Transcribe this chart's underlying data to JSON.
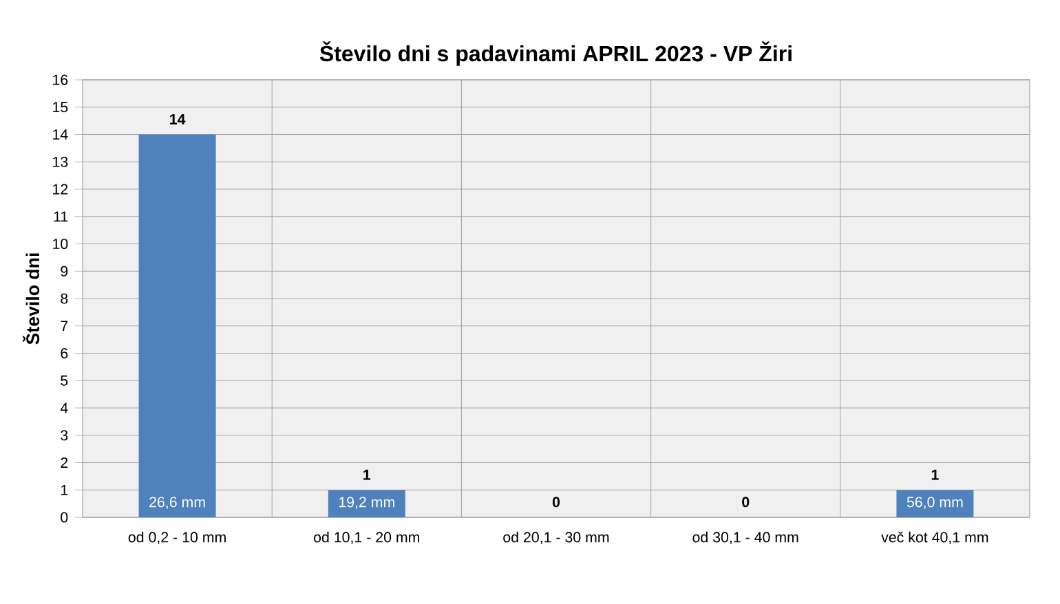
{
  "chart_data": {
    "type": "bar",
    "title": "Število dni s padavinami  APRIL 2023 - VP Žiri",
    "ylabel": "Število dni",
    "categories": [
      "od 0,2 - 10 mm",
      "od 10,1 - 20 mm",
      "od 20,1 - 30 mm",
      "od 30,1 - 40 mm",
      "več kot 40,1 mm"
    ],
    "values": [
      14,
      1,
      0,
      0,
      1
    ],
    "color": "#4f81bd",
    "ylim": [
      0,
      16
    ],
    "yticks": [
      0,
      1,
      2,
      3,
      4,
      5,
      6,
      7,
      8,
      9,
      10,
      11,
      12,
      13,
      14,
      15,
      16
    ],
    "grid": true,
    "data_labels": true,
    "annotations": [
      {
        "text": "26,6 mm",
        "x": "od 0,2 - 10 mm",
        "y": 0
      },
      {
        "text": "19,2 mm",
        "x": "od 10,1 - 20 mm",
        "y": 0
      },
      {
        "text": "56,0 mm",
        "x": "več kot 40,1 mm",
        "y": 0
      }
    ]
  }
}
